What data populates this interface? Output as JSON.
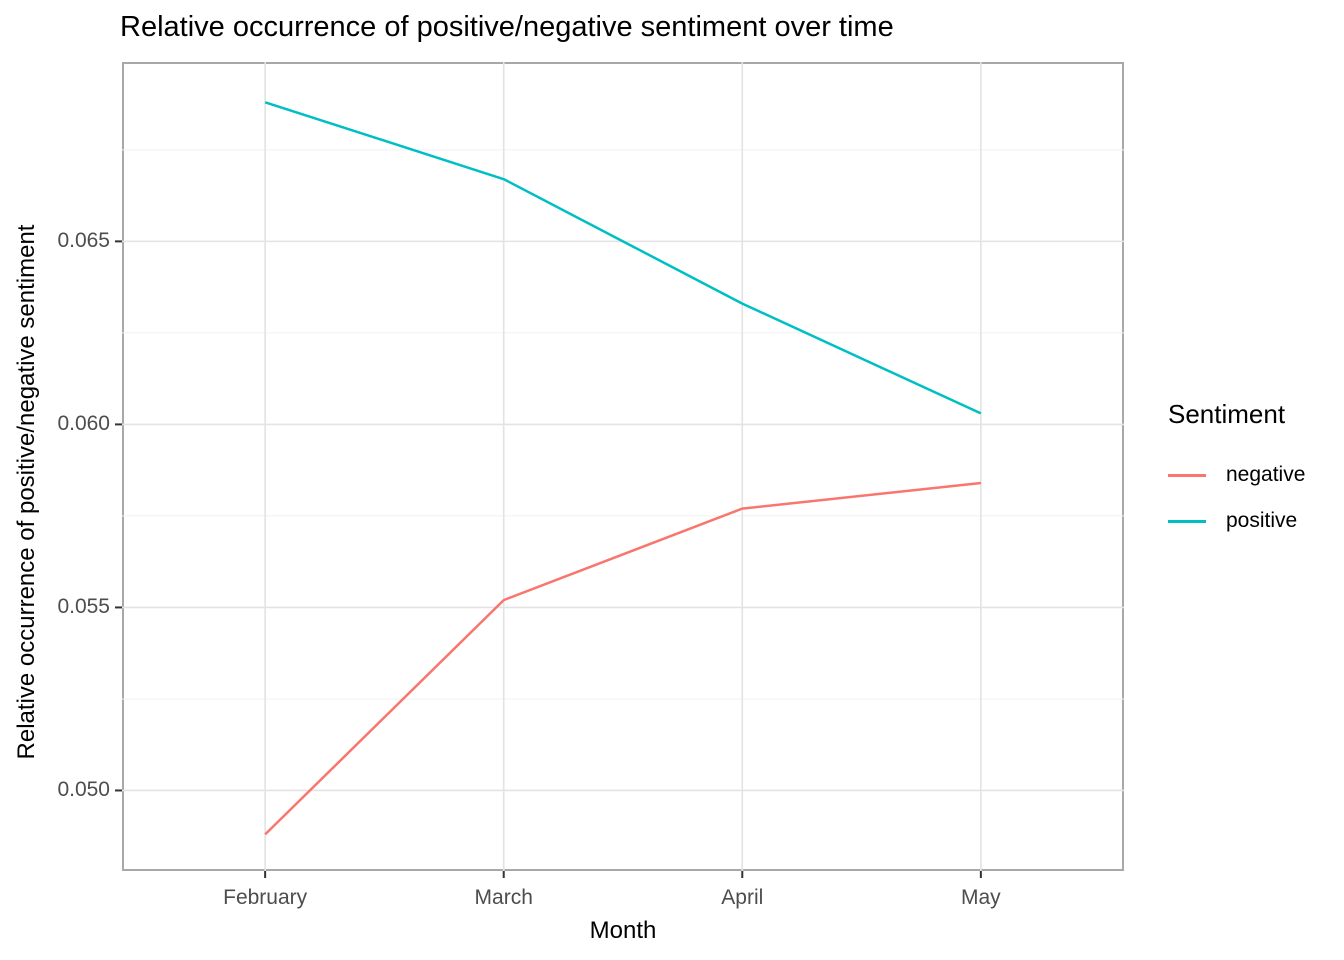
{
  "title": "Relative occurrence of positive/negative sentiment over time",
  "chart_data": {
    "type": "line",
    "title": "Relative occurrence of positive/negative sentiment over time",
    "xlabel": "Month",
    "ylabel": "Relative occurrence of positive/negative sentiment",
    "categories": [
      "February",
      "March",
      "April",
      "May"
    ],
    "series": [
      {
        "name": "negative",
        "color": "#F8766D",
        "values": [
          0.0488,
          0.0552,
          0.0577,
          0.0584
        ]
      },
      {
        "name": "positive",
        "color": "#00BFC4",
        "values": [
          0.0688,
          0.0667,
          0.0633,
          0.0603
        ]
      }
    ],
    "ylim": [
      0.0478,
      0.0699
    ],
    "yticks": [
      0.05,
      0.055,
      0.06,
      0.065
    ],
    "ytick_labels": [
      "0.050",
      "0.055",
      "0.060",
      "0.065"
    ],
    "yticks_minor": [
      0.0525,
      0.0575,
      0.0625,
      0.0675
    ],
    "grid": "major and minor horizontal, major vertical per category",
    "legend_position": "right",
    "legend_title": "Sentiment"
  },
  "style_colors": {
    "grid_major": "#e3e3e3",
    "grid_minor": "#f0f0f0",
    "panel_border": "#a8a8a8",
    "tick_mark": "#333333",
    "tick_text": "#4d4d4d"
  }
}
